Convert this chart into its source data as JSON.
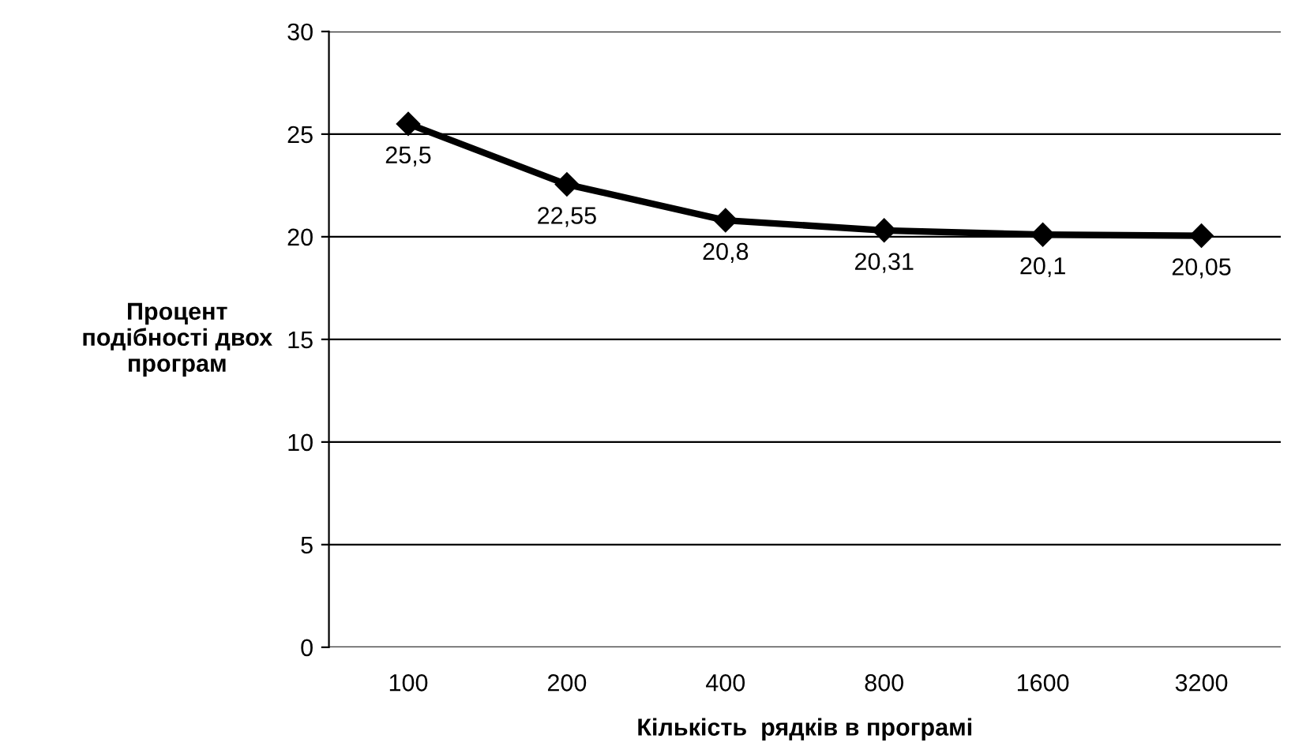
{
  "chart_data": {
    "type": "line",
    "xlabel": "Кількість  рядків в програмі",
    "ylabel": "Процент\nподібності двох\nпрограм",
    "categories": [
      "100",
      "200",
      "400",
      "800",
      "1600",
      "3200"
    ],
    "series": [
      {
        "color": "#000000",
        "values": [
          25.5,
          22.55,
          20.8,
          20.31,
          20.1,
          20.05
        ],
        "value_labels": [
          "25,5",
          "22,55",
          "20,8",
          "20,31",
          "20,1",
          "20,05"
        ]
      }
    ],
    "ylim": [
      0,
      30
    ],
    "yticks": [
      0,
      5,
      10,
      15,
      20,
      25,
      30
    ],
    "grid": "y",
    "marker": "diamond",
    "line_style": "solid",
    "legend": false
  }
}
